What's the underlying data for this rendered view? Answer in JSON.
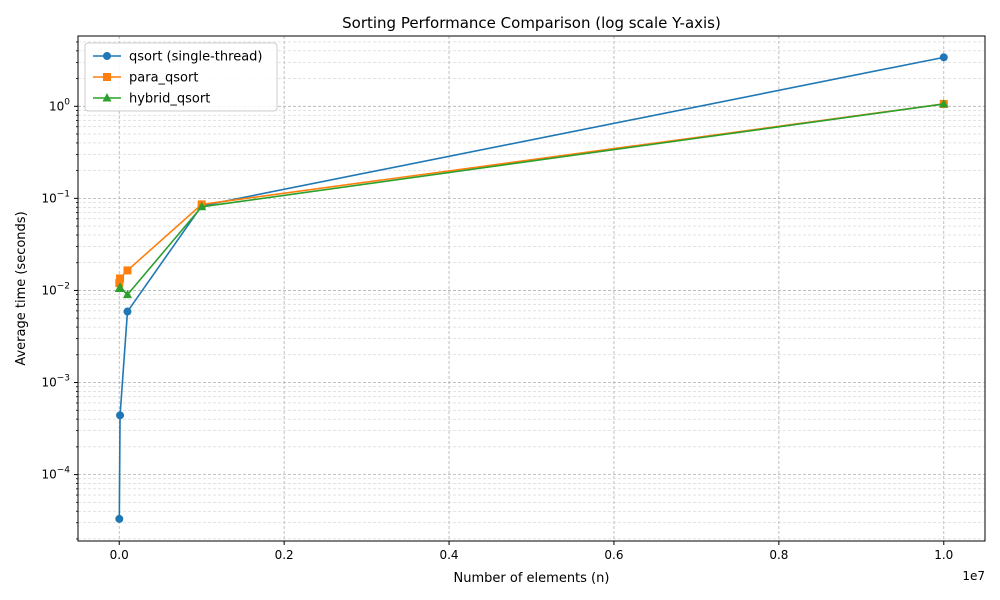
{
  "chart_data": {
    "type": "line",
    "title": "Sorting Performance Comparison (log scale Y-axis)",
    "xlabel": "Number of elements (n)",
    "ylabel": "Average time (seconds)",
    "x_offset_label": "1e7",
    "x_scale": "linear",
    "y_scale": "log",
    "xlim": [
      -500000,
      10500000
    ],
    "ylim": [
      1.9e-05,
      5.8
    ],
    "x_tick_values": [
      0,
      2000000,
      4000000,
      6000000,
      8000000,
      10000000
    ],
    "x_tick_labels": [
      "0.0",
      "0.2",
      "0.4",
      "0.6",
      "0.8",
      "1.0"
    ],
    "y_tick_values": [
      0.0001,
      0.001,
      0.01,
      0.1,
      1
    ],
    "y_tick_labels": [
      {
        "base": "10",
        "exp": "−4"
      },
      {
        "base": "10",
        "exp": "−3"
      },
      {
        "base": "10",
        "exp": "−2"
      },
      {
        "base": "10",
        "exp": "−1"
      },
      {
        "base": "10",
        "exp": "0"
      }
    ],
    "grid": "both (major and minor), dashed",
    "legend_position": "top-left",
    "series": [
      {
        "name": "qsort (single-thread)",
        "color": "#1f77b4",
        "marker": "circle",
        "x": [
          1000,
          10000,
          100000,
          1000000,
          10000000
        ],
        "y": [
          3.3e-05,
          0.00044,
          0.0059,
          0.083,
          3.4
        ]
      },
      {
        "name": "para_qsort",
        "color": "#ff7f0e",
        "marker": "square",
        "x": [
          1000,
          10000,
          100000,
          1000000,
          10000000
        ],
        "y": [
          0.012,
          0.0135,
          0.0165,
          0.086,
          1.06
        ]
      },
      {
        "name": "hybrid_qsort",
        "color": "#2ca02c",
        "marker": "triangle",
        "x": [
          1000,
          10000,
          100000,
          1000000,
          10000000
        ],
        "y": [
          0.0105,
          0.0108,
          0.009,
          0.081,
          1.06
        ]
      }
    ]
  }
}
